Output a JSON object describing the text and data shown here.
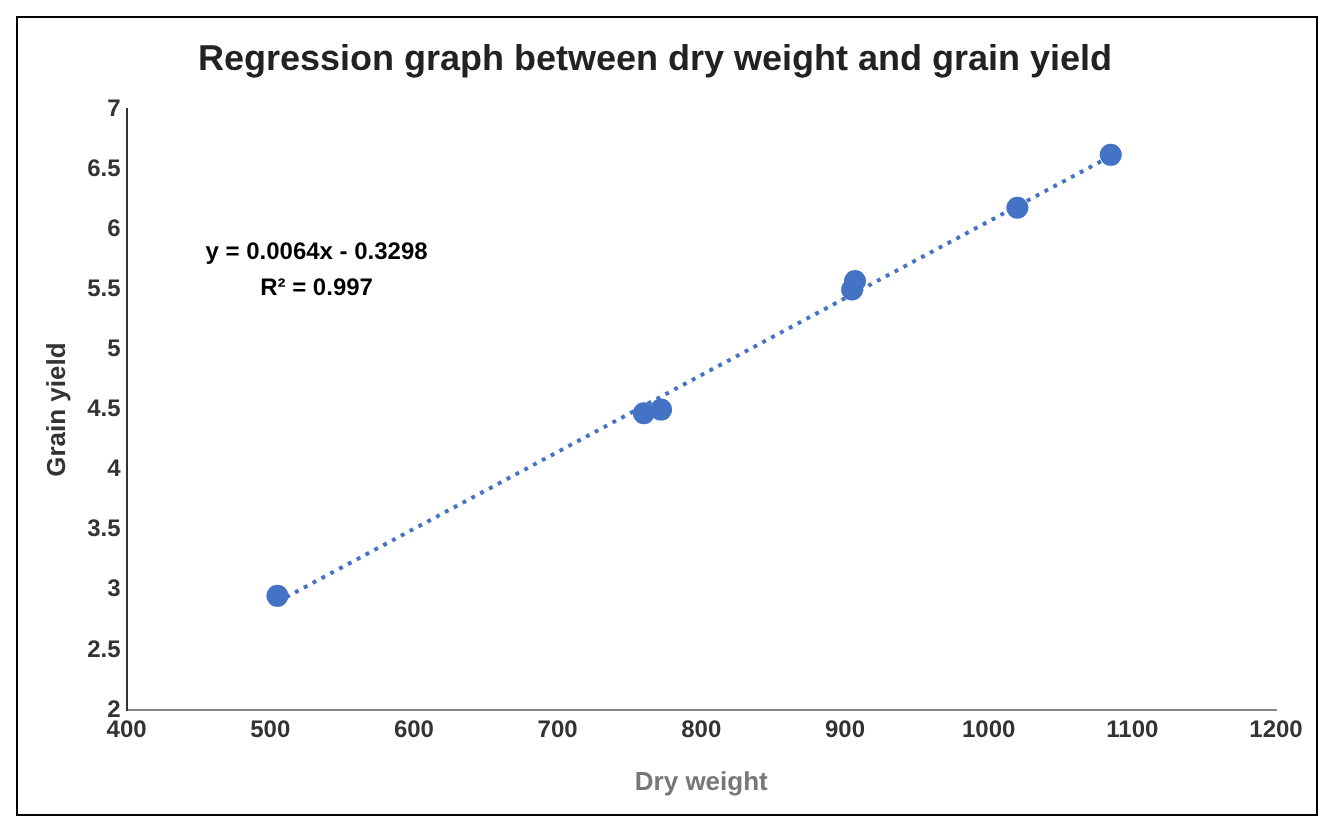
{
  "chart_data": {
    "type": "scatter",
    "title": "Regression graph between dry weight and grain yield",
    "xlabel": "Dry weight",
    "ylabel": "Grain yield",
    "xlim": [
      400,
      1200
    ],
    "xticks": [
      400,
      500,
      600,
      700,
      800,
      900,
      1000,
      1100,
      1200
    ],
    "ylim": [
      2,
      7
    ],
    "yticks": [
      2,
      2.5,
      3,
      3.5,
      4,
      4.5,
      5,
      5.5,
      6,
      6.5,
      7
    ],
    "grid": false,
    "legend": false,
    "marker": "circle",
    "annotations": [
      "y = 0.0064x - 0.3298",
      "R² = 0.997"
    ],
    "series": [
      {
        "type": "scatter",
        "color": "#4472c4",
        "x": [
          505,
          760,
          772,
          905,
          907,
          1020,
          1085
        ],
        "values": [
          2.95,
          4.47,
          4.5,
          5.5,
          5.57,
          6.18,
          6.62
        ]
      },
      {
        "type": "line",
        "color": "#4472c4",
        "line_style": "dotted",
        "marker": "none",
        "x": [
          505,
          1085
        ],
        "values": [
          2.9,
          6.61
        ]
      }
    ]
  }
}
